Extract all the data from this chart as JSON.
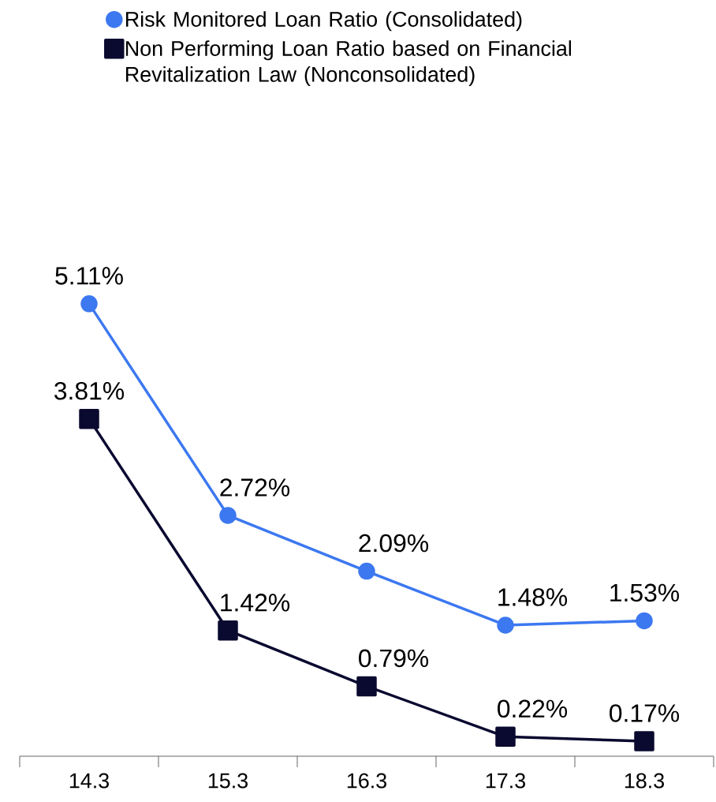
{
  "chart_data": {
    "type": "line",
    "categories": [
      "14.3",
      "15.3",
      "16.3",
      "17.3",
      "18.3"
    ],
    "series": [
      {
        "name": "Risk Monitored Loan Ratio (Consolidated)",
        "color": "#3c78f0",
        "marker": "circle",
        "values": [
          5.11,
          2.72,
          2.09,
          1.48,
          1.53
        ],
        "value_labels": [
          "5.11%",
          "2.72%",
          "2.09%",
          "1.48%",
          "1.53%"
        ]
      },
      {
        "name": "Non Performing Loan Ratio based on Financial Revitalization Law (Nonconsolidated)",
        "color": "#0a0a30",
        "marker": "square",
        "values": [
          3.81,
          1.42,
          0.79,
          0.22,
          0.17
        ],
        "value_labels": [
          "3.81%",
          "1.42%",
          "0.79%",
          "0.22%",
          "0.17%"
        ]
      }
    ],
    "legend": "top left",
    "grid": false,
    "line_style": "solid"
  }
}
